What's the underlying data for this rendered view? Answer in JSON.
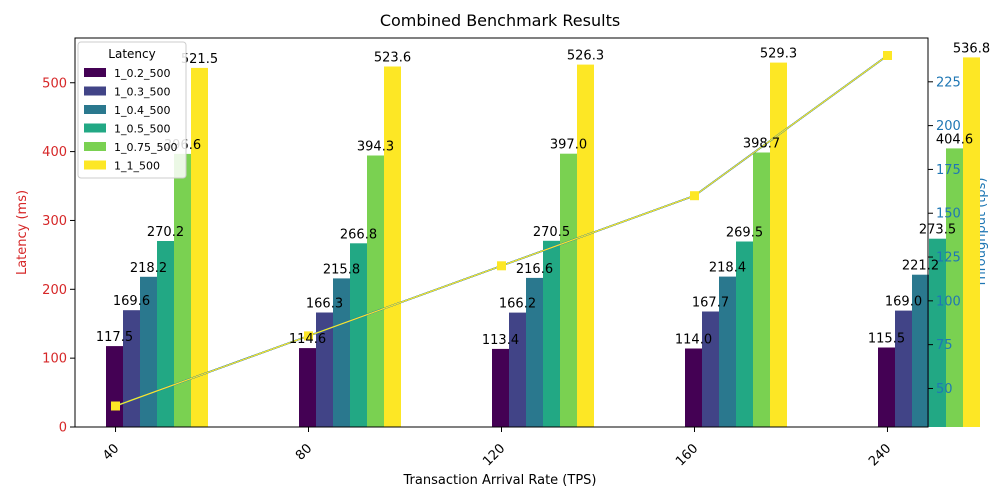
{
  "chart_data": {
    "type": "bar",
    "title": "Combined Benchmark Results",
    "xlabel": "Transaction Arrival Rate (TPS)",
    "ylabel": "Latency (ms)",
    "y2label": "Throughput (tps)",
    "categories": [
      "40",
      "80",
      "120",
      "160",
      "240"
    ],
    "ylim": [
      0,
      565
    ],
    "yticks": [
      0,
      100,
      200,
      300,
      400,
      500
    ],
    "y2lim": [
      28,
      250
    ],
    "y2ticks": [
      50,
      75,
      100,
      125,
      150,
      175,
      200,
      225
    ],
    "legend": {
      "title": "Latency",
      "position": "top-left"
    },
    "colors": {
      "left_axis": "#d62728",
      "right_axis": "#1f77b4",
      "throughput_line": "#1f77b4",
      "throughput_marker": "#fde725"
    },
    "series": [
      {
        "name": "1_0.2_500",
        "color": "#440154",
        "values": [
          117.5,
          114.6,
          113.4,
          114.0,
          115.5
        ]
      },
      {
        "name": "1_0.3_500",
        "color": "#414487",
        "values": [
          169.6,
          166.3,
          166.2,
          167.7,
          169.0
        ]
      },
      {
        "name": "1_0.4_500",
        "color": "#2a788e",
        "values": [
          218.2,
          215.8,
          216.6,
          218.4,
          221.2
        ]
      },
      {
        "name": "1_0.5_500",
        "color": "#22a884",
        "values": [
          270.2,
          266.8,
          270.5,
          269.5,
          273.5
        ]
      },
      {
        "name": "1_0.75_500",
        "color": "#7ad151",
        "values": [
          396.6,
          394.3,
          397.0,
          398.7,
          404.6
        ]
      },
      {
        "name": "1_1_500",
        "color": "#fde725",
        "values": [
          521.5,
          523.6,
          526.3,
          529.3,
          536.8
        ]
      }
    ],
    "throughput": [
      40,
      80,
      120,
      160,
      240
    ]
  }
}
